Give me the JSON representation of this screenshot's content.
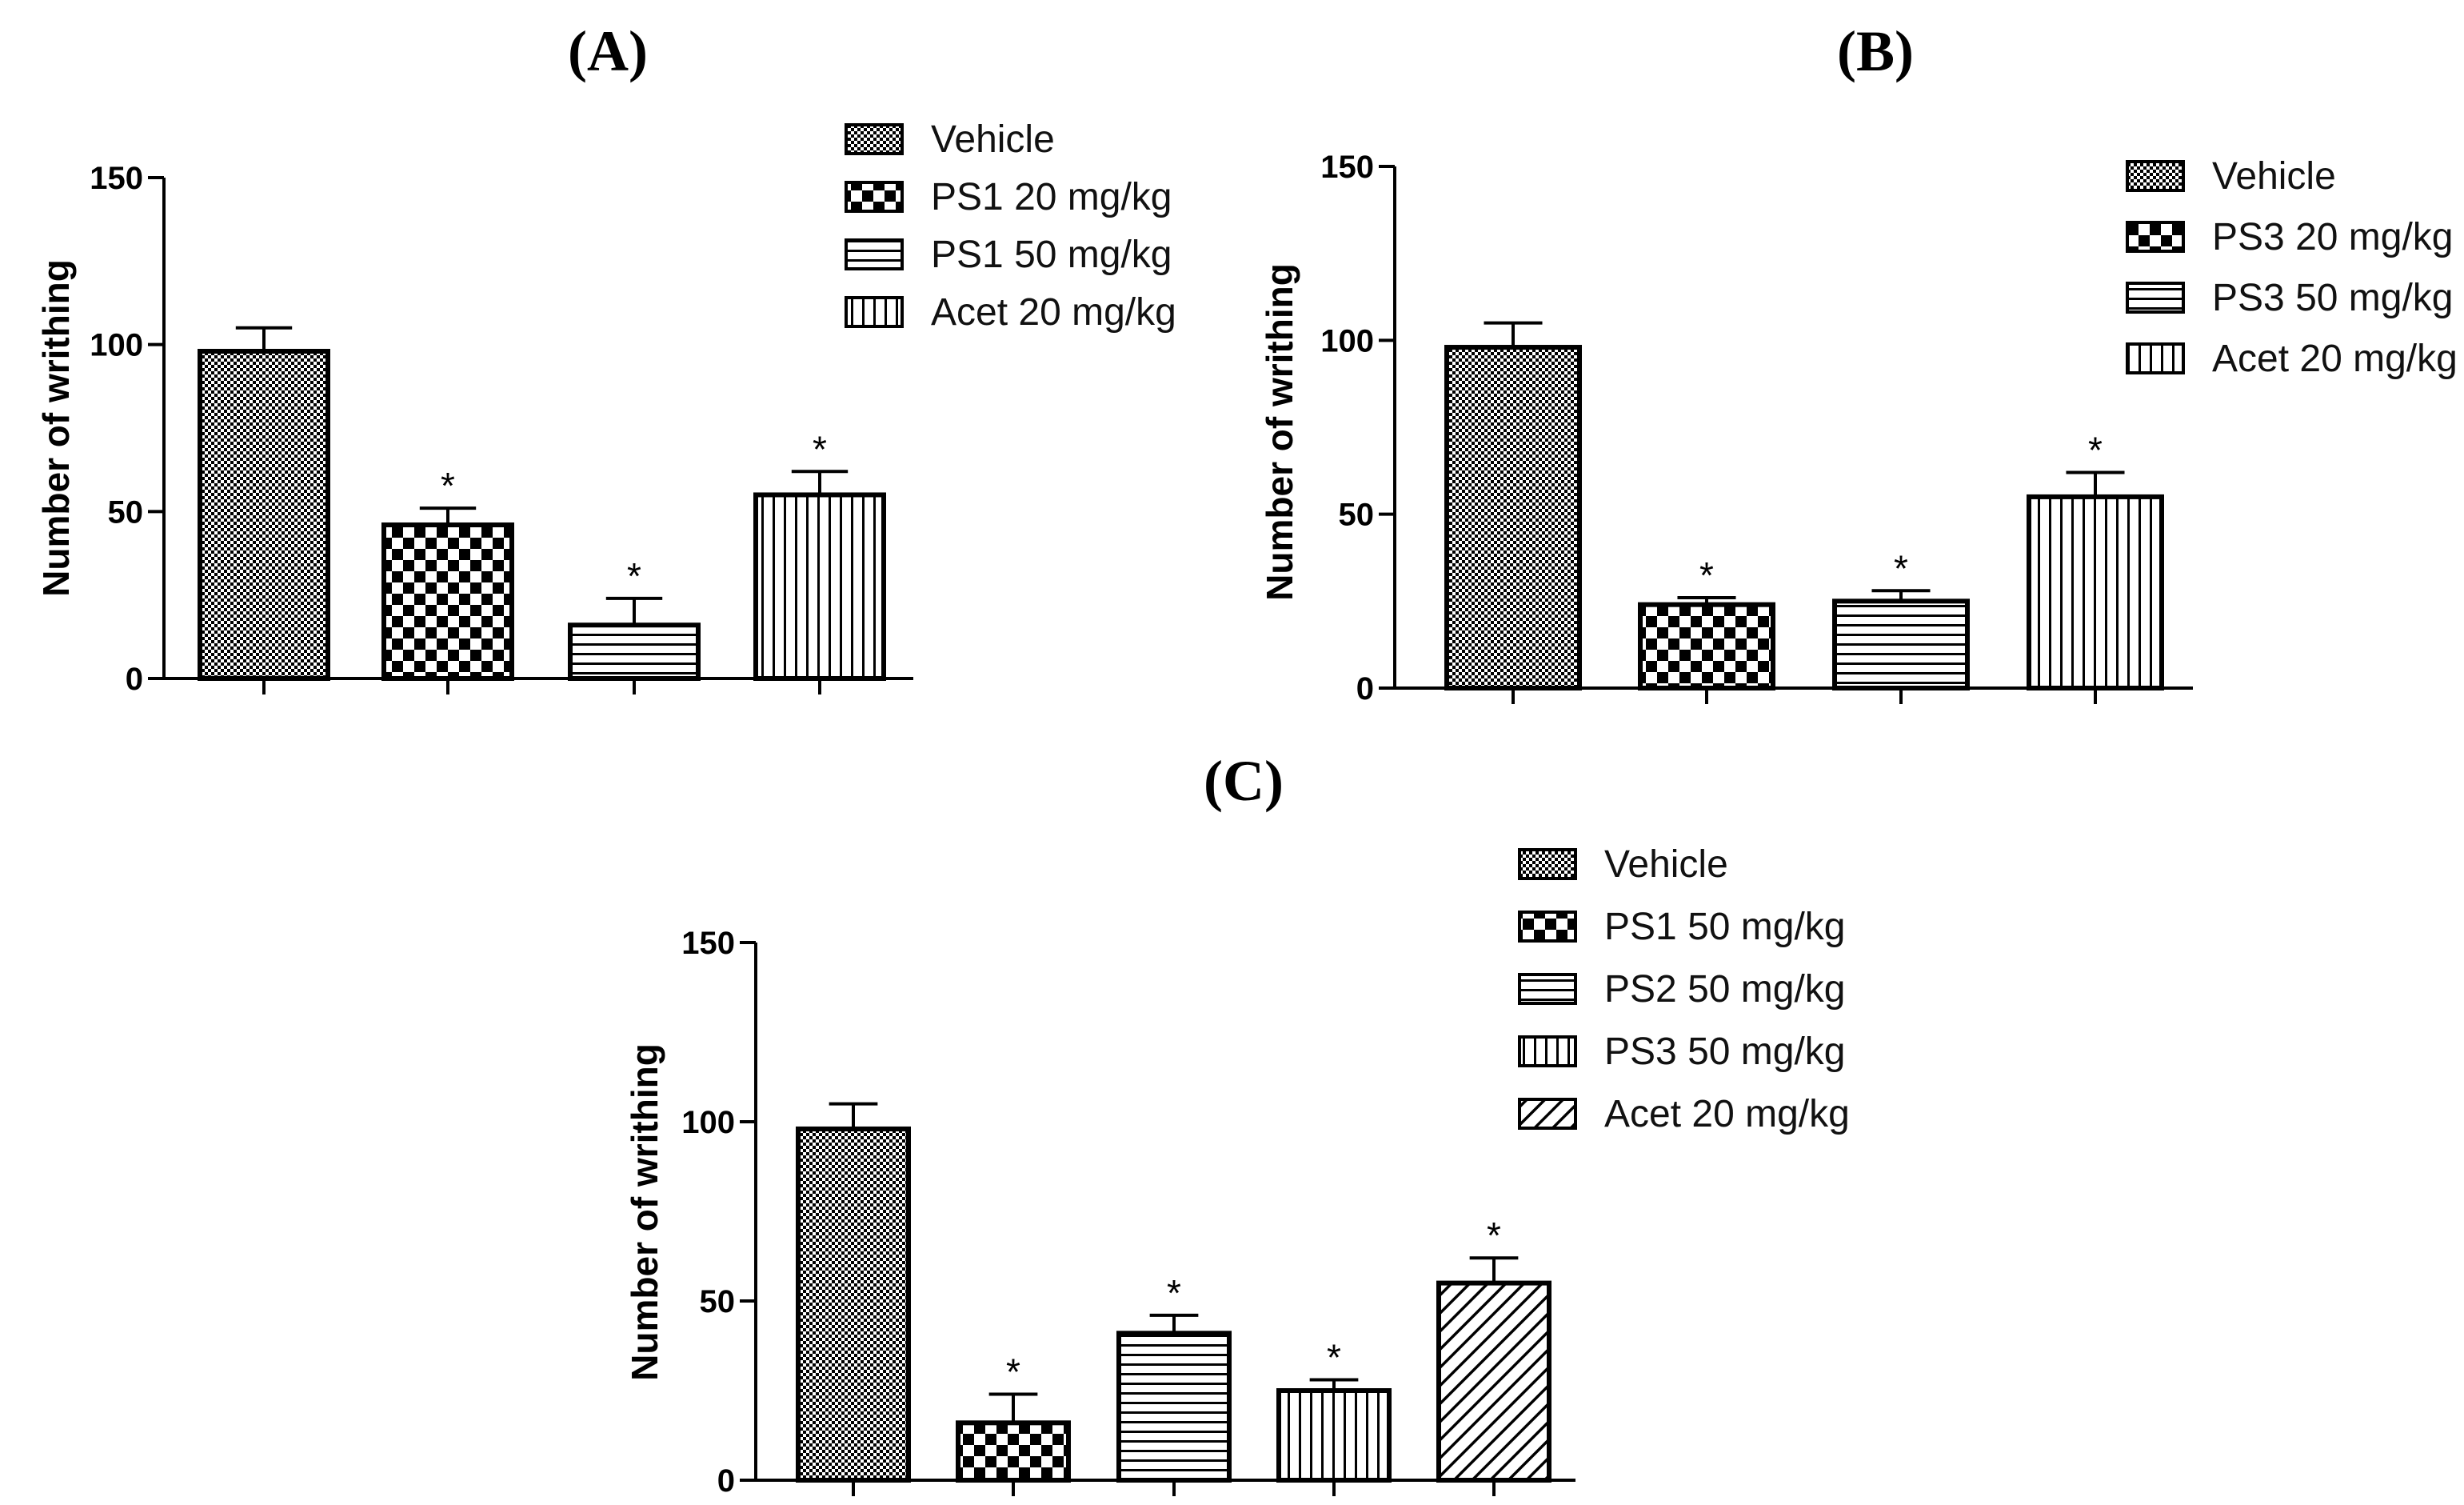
{
  "chart_data": [
    {
      "type": "bar",
      "panel_label": "(A)",
      "ylabel": "Number of writhing",
      "ylim": [
        0,
        150
      ],
      "yticks": [
        0,
        50,
        100,
        150
      ],
      "categories": [
        "Vehicle",
        "PS1 20 mg/kg",
        "PS1 50 mg/kg",
        "Acet 20 mg/kg"
      ],
      "values": [
        98,
        46,
        16,
        55
      ],
      "errors": [
        7,
        5,
        8,
        7
      ],
      "significance": [
        "",
        "*",
        "*",
        "*"
      ],
      "patterns": [
        "fine-check",
        "checker",
        "horizontal",
        "vertical"
      ]
    },
    {
      "type": "bar",
      "panel_label": "(B)",
      "ylabel": "Number of writhing",
      "ylim": [
        0,
        150
      ],
      "yticks": [
        0,
        50,
        100,
        150
      ],
      "categories": [
        "Vehicle",
        "PS3 20 mg/kg",
        "PS3 50 mg/kg",
        "Acet 20 mg/kg"
      ],
      "values": [
        98,
        24,
        25,
        55
      ],
      "errors": [
        7,
        2,
        3,
        7
      ],
      "significance": [
        "",
        "*",
        "*",
        "*"
      ],
      "patterns": [
        "fine-check",
        "checker",
        "horizontal",
        "vertical"
      ]
    },
    {
      "type": "bar",
      "panel_label": "(C)",
      "ylabel": "Number of writhing",
      "ylim": [
        0,
        150
      ],
      "yticks": [
        0,
        50,
        100,
        150
      ],
      "categories": [
        "Vehicle",
        "PS1 50 mg/kg",
        "PS2 50 mg/kg",
        "PS3 50 mg/kg",
        "Acet 20 mg/kg"
      ],
      "values": [
        98,
        16,
        41,
        25,
        55
      ],
      "errors": [
        7,
        8,
        5,
        3,
        7
      ],
      "significance": [
        "",
        "*",
        "*",
        "*",
        "*"
      ],
      "patterns": [
        "fine-check",
        "checker",
        "horizontal",
        "vertical",
        "diagonal"
      ]
    }
  ]
}
